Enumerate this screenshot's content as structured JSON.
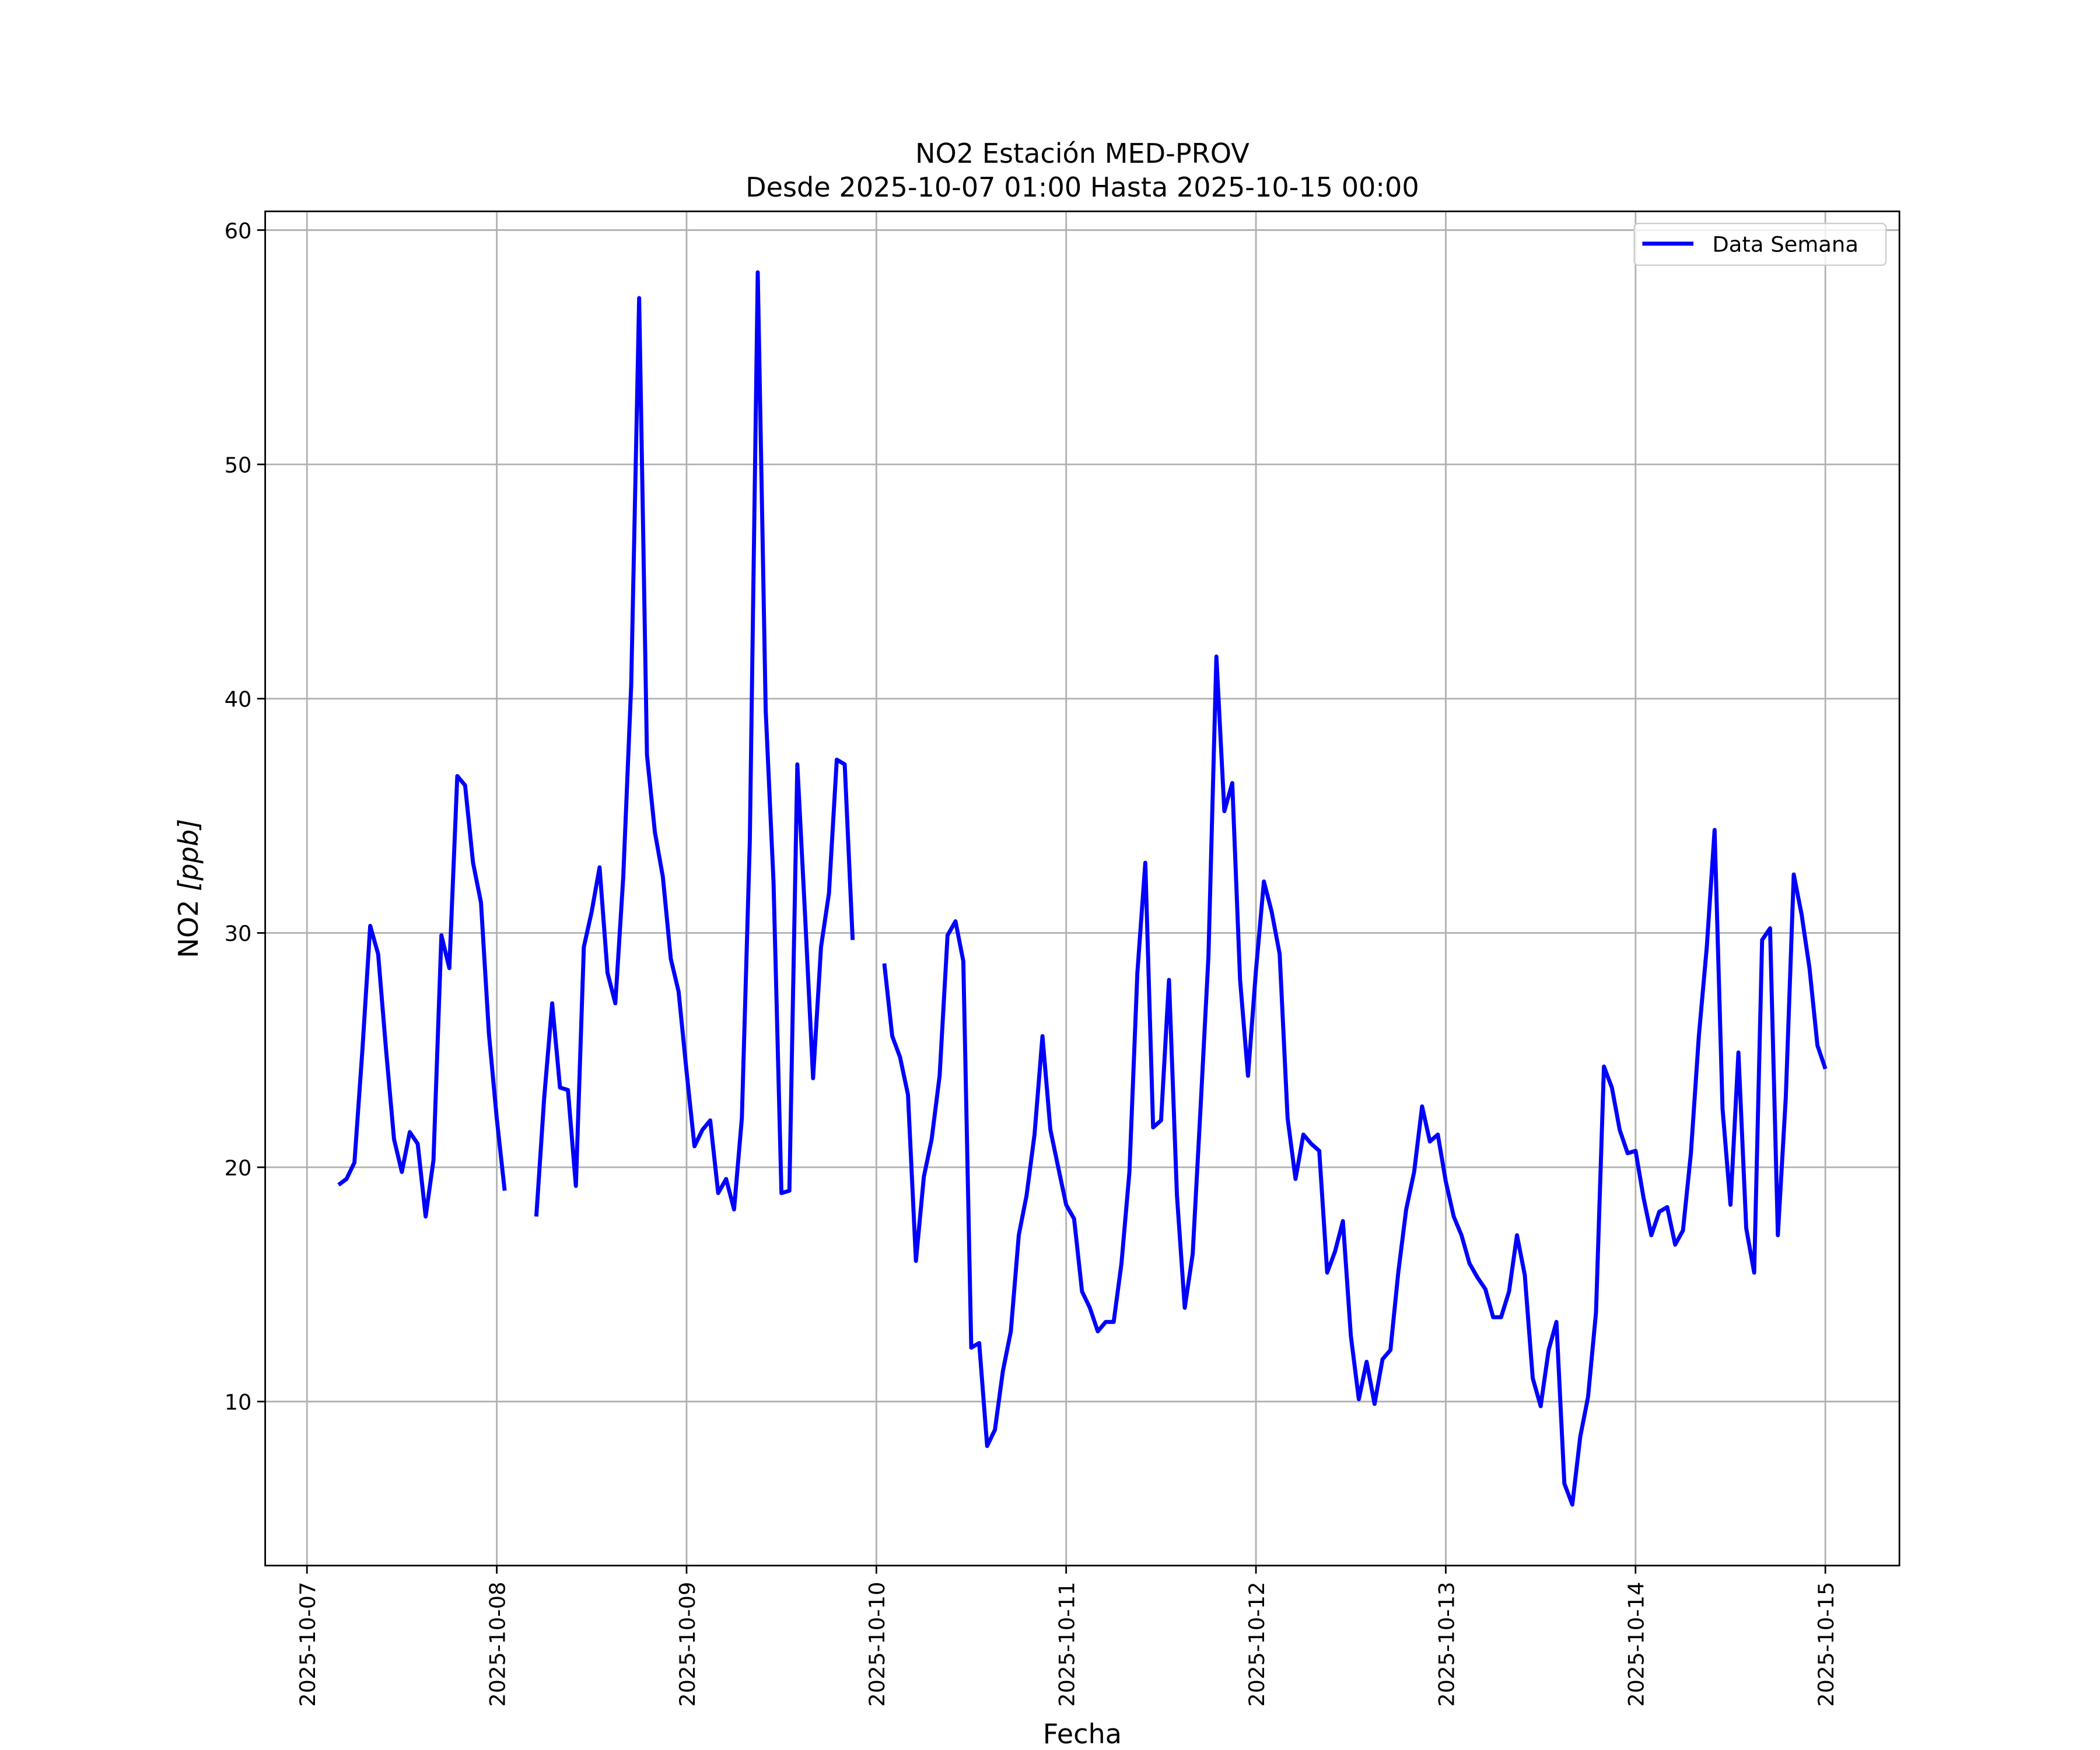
{
  "chart_data": {
    "type": "line",
    "title": "NO2 Estación MED-PROV",
    "subtitle": "Desde 2025-10-07 01:00 Hasta 2025-10-15 00:00",
    "xlabel": "Fecha",
    "ylabel_main": "NO2 ",
    "ylabel_unit": "[ppb]",
    "xlim": [
      "2025-10-06 18:43",
      "2025-10-15 09:22"
    ],
    "ylim": [
      3.0,
      60.8
    ],
    "grid": true,
    "legend_position": "top-right",
    "x_ticks": [
      "2025-10-07",
      "2025-10-08",
      "2025-10-09",
      "2025-10-10",
      "2025-10-11",
      "2025-10-12",
      "2025-10-13",
      "2025-10-14",
      "2025-10-15"
    ],
    "y_ticks": [
      10,
      20,
      30,
      40,
      50,
      60
    ],
    "series": [
      {
        "name": "Data Semana",
        "color": "#0000ff",
        "hourly_by_day": [
          {
            "date": "2025-10-07",
            "start_hour": 4,
            "values": [
              19.25,
              19.5,
              20.2,
              25.0,
              30.3,
              29.1,
              25.0,
              21.2,
              19.8,
              21.5,
              21.0,
              17.9,
              20.3,
              29.9,
              28.5,
              36.7,
              36.3,
              33.0,
              31.3,
              25.7
            ]
          },
          {
            "date": "2025-10-08",
            "start_hour": 0,
            "values": [
              22.1,
              19.0,
              null,
              null,
              null,
              17.9,
              23.0,
              27.0,
              23.4,
              23.3,
              19.2,
              29.4,
              30.9,
              32.8,
              28.3,
              27.0,
              32.4,
              40.6,
              57.1,
              37.6,
              34.3,
              32.4,
              28.9,
              27.5
            ]
          },
          {
            "date": "2025-10-09",
            "start_hour": 0,
            "values": [
              24.1,
              20.9,
              21.6,
              22.0,
              18.9,
              19.5,
              18.2,
              22.1,
              33.9,
              58.2,
              39.5,
              32.2,
              18.9,
              19.0,
              37.2,
              30.7,
              23.8,
              29.4,
              31.7,
              37.4,
              37.2,
              29.7,
              null,
              null
            ]
          },
          {
            "date": "2025-10-10",
            "start_hour": 0,
            "values": [
              null,
              28.7,
              25.6,
              24.7,
              23.1,
              16.0,
              19.6,
              21.2,
              23.9,
              29.9,
              30.5,
              28.8,
              12.3,
              12.5,
              8.1,
              8.8,
              11.3,
              13.0,
              17.1,
              18.8,
              21.4,
              25.6,
              21.6,
              20.0
            ]
          },
          {
            "date": "2025-10-11",
            "start_hour": 0,
            "values": [
              18.4,
              17.8,
              14.7,
              14.0,
              13.0,
              13.4,
              13.4,
              15.9,
              19.8,
              28.3,
              33.0,
              21.7,
              22.0,
              28.0,
              18.8,
              14.0,
              16.3,
              22.6,
              29.0,
              41.8,
              35.2,
              36.4,
              28.0,
              23.9
            ]
          },
          {
            "date": "2025-10-12",
            "start_hour": 0,
            "values": [
              28.4,
              32.2,
              30.9,
              29.1,
              22.1,
              19.5,
              21.4,
              21.0,
              20.7,
              15.5,
              16.4,
              17.7,
              12.8,
              10.1,
              11.7,
              9.9,
              11.8,
              12.2,
              15.5,
              18.2,
              19.8,
              22.6,
              21.1,
              21.4
            ]
          },
          {
            "date": "2025-10-13",
            "start_hour": 0,
            "values": [
              19.4,
              17.9,
              17.1,
              15.9,
              15.3,
              14.8,
              13.6,
              13.6,
              14.7,
              17.1,
              15.4,
              11.0,
              9.8,
              12.2,
              13.4,
              6.5,
              5.6,
              8.5,
              10.2,
              13.8,
              24.3,
              23.4,
              21.6,
              20.6
            ]
          },
          {
            "date": "2025-10-14",
            "start_hour": 0,
            "values": [
              20.7,
              18.7,
              17.1,
              18.1,
              18.3,
              16.7,
              17.3,
              20.6,
              25.6,
              29.4,
              34.4,
              22.5,
              18.4,
              24.9,
              17.4,
              15.5,
              29.7,
              30.2,
              17.1,
              23.0,
              32.5,
              30.8,
              28.5,
              25.2
            ]
          },
          {
            "date": "2025-10-15",
            "start_hour": 0,
            "values": [
              24.2
            ]
          }
        ]
      }
    ]
  }
}
